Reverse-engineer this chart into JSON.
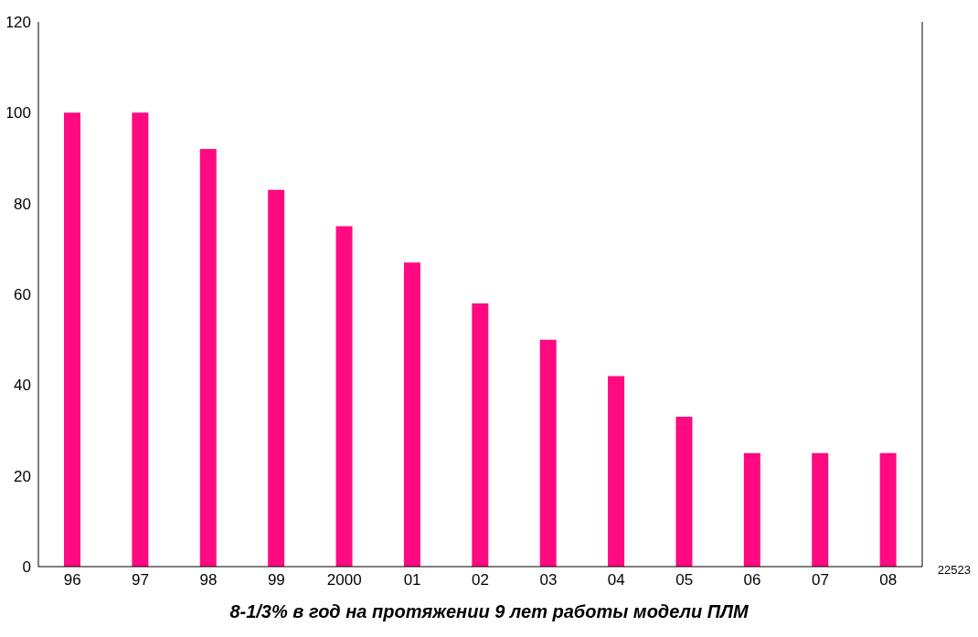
{
  "chart_data": {
    "type": "bar",
    "title": "8-1/3% в год на протяжении 9 лет работы модели ПЛМ",
    "categories": [
      "96",
      "97",
      "98",
      "99",
      "2000",
      "01",
      "02",
      "03",
      "04",
      "05",
      "06",
      "07",
      "08"
    ],
    "values": [
      100,
      100,
      92,
      83,
      75,
      67,
      58,
      50,
      42,
      33,
      25,
      25,
      25
    ],
    "color": "#ff0a80",
    "ylim": [
      0,
      120
    ],
    "yticks": [
      0,
      20,
      40,
      60,
      80,
      100,
      120
    ],
    "grid": false,
    "annotations": [
      "22523"
    ]
  }
}
